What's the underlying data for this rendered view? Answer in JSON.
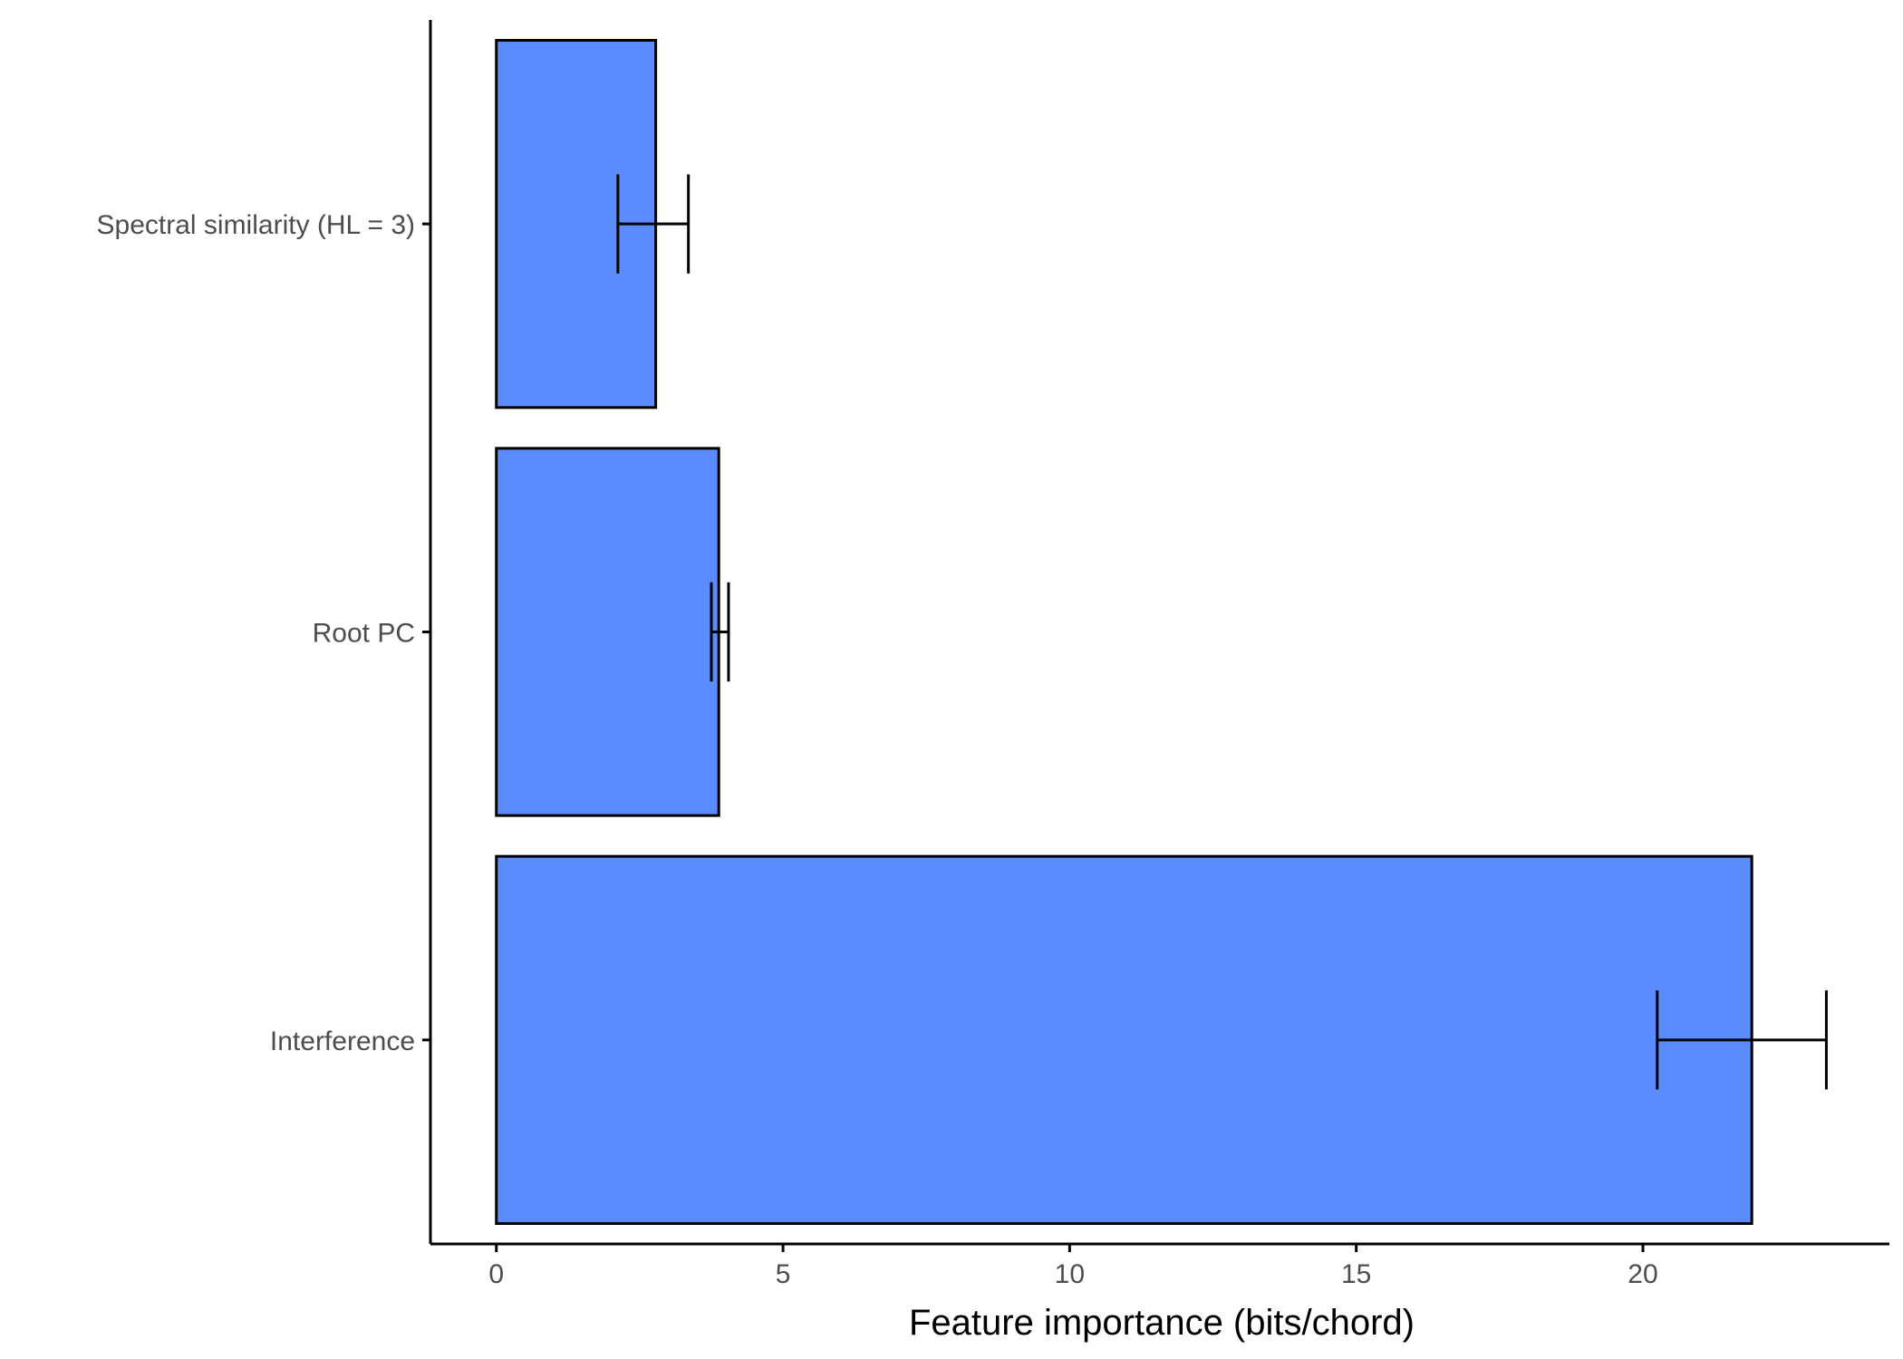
{
  "chart_data": {
    "type": "bar",
    "orientation": "horizontal",
    "title": "",
    "xlabel": "Feature importance (bits/chord)",
    "ylabel": "",
    "categories": [
      "Spectral similarity (HL = 3)",
      "Root PC",
      "Interference"
    ],
    "values": [
      2.78,
      3.88,
      21.9
    ],
    "error_low": [
      2.12,
      3.75,
      20.25
    ],
    "error_high": [
      3.35,
      4.05,
      23.2
    ],
    "xlim": [
      -1.15,
      24.3
    ],
    "xticks": [
      0,
      5,
      10,
      15,
      20
    ],
    "bar_color": "#5A8CFF",
    "grid": false,
    "legend": "none"
  }
}
